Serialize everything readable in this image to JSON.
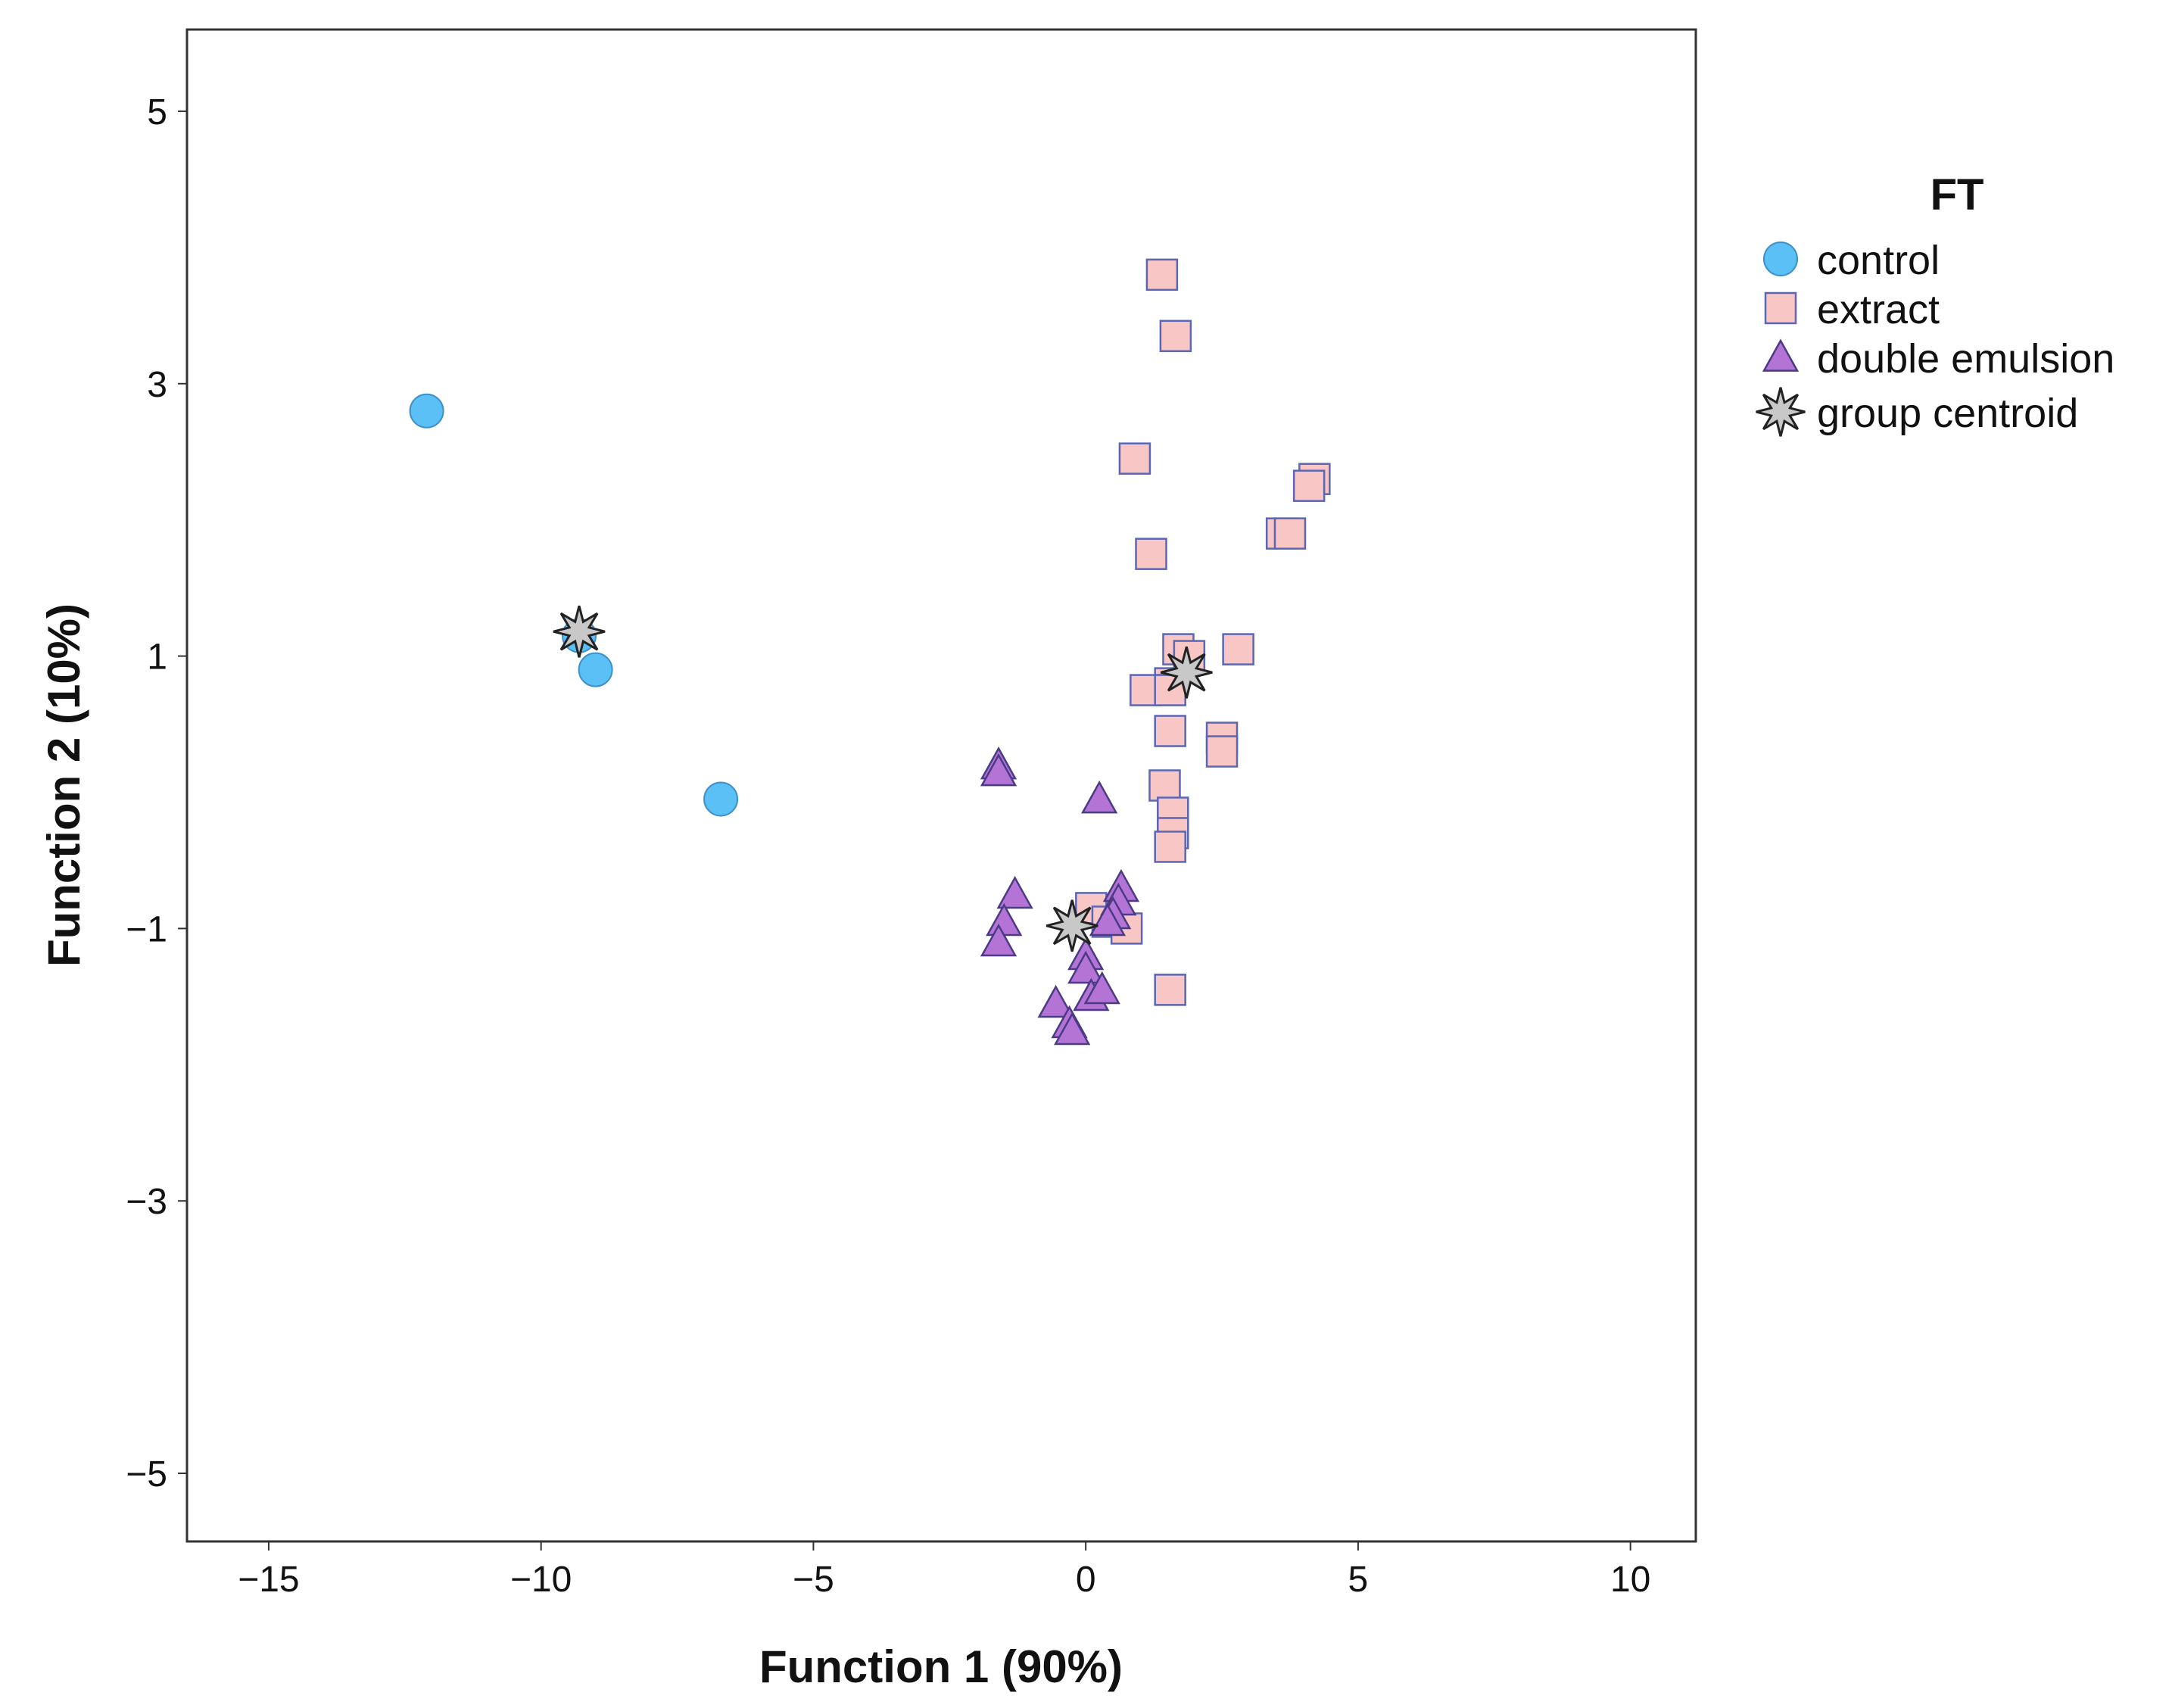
{
  "chart_data": {
    "type": "scatter",
    "xlabel": "Function 1 (90%)",
    "ylabel": "Function 2 (10%)",
    "xlim": [
      -16.5,
      11.2
    ],
    "ylim": [
      -5.5,
      5.6
    ],
    "x_ticks": [
      -15,
      -10,
      -5,
      0,
      5,
      10
    ],
    "x_tick_labels": [
      "−15",
      "−10",
      "−5",
      "0",
      "5",
      "10"
    ],
    "y_ticks": [
      5,
      3,
      1,
      -1,
      -3,
      -5
    ],
    "y_tick_labels": [
      "5",
      "3",
      "1",
      "−1",
      "−3",
      "−5"
    ],
    "grid": false,
    "legend_title": "FT",
    "legend_position": "right",
    "colors": {
      "control": "#5bc0f5",
      "extract": "#f9c6c6",
      "extract_edge": "#5b66b5",
      "double_emulsion": "#b474d6",
      "double_emulsion_edge": "#4b3a86",
      "centroid": "#c8c8c8",
      "centroid_edge": "#222222"
    },
    "series": [
      {
        "name": "control",
        "marker": "circle",
        "points": [
          [
            -12.1,
            2.8
          ],
          [
            -9.3,
            1.15
          ],
          [
            -9.0,
            0.9
          ],
          [
            -6.7,
            -0.05
          ]
        ]
      },
      {
        "name": "extract",
        "marker": "square",
        "points": [
          [
            1.4,
            3.8
          ],
          [
            1.65,
            3.35
          ],
          [
            0.9,
            2.45
          ],
          [
            4.2,
            2.3
          ],
          [
            4.1,
            2.25
          ],
          [
            3.6,
            1.9
          ],
          [
            3.75,
            1.9
          ],
          [
            1.2,
            1.75
          ],
          [
            1.7,
            1.05
          ],
          [
            2.8,
            1.05
          ],
          [
            1.9,
            1.0
          ],
          [
            1.55,
            0.8
          ],
          [
            1.1,
            0.75
          ],
          [
            1.55,
            0.75
          ],
          [
            1.55,
            0.45
          ],
          [
            2.5,
            0.4
          ],
          [
            2.5,
            0.3
          ],
          [
            1.45,
            0.05
          ],
          [
            1.6,
            -0.15
          ],
          [
            1.6,
            -0.3
          ],
          [
            1.55,
            -0.4
          ],
          [
            0.1,
            -0.85
          ],
          [
            0.4,
            -0.95
          ],
          [
            0.75,
            -1.0
          ],
          [
            1.55,
            -1.45
          ]
        ]
      },
      {
        "name": "double emulsion",
        "marker": "triangle",
        "points": [
          [
            -1.6,
            0.2
          ],
          [
            -1.6,
            0.15
          ],
          [
            0.25,
            -0.05
          ],
          [
            -1.3,
            -0.75
          ],
          [
            -1.5,
            -0.95
          ],
          [
            -1.6,
            -1.1
          ],
          [
            0.65,
            -0.7
          ],
          [
            0.6,
            -0.8
          ],
          [
            0.5,
            -0.9
          ],
          [
            0.4,
            -0.95
          ],
          [
            0.0,
            -1.2
          ],
          [
            0.0,
            -1.3
          ],
          [
            0.1,
            -1.5
          ],
          [
            0.3,
            -1.45
          ],
          [
            -0.55,
            -1.55
          ],
          [
            -0.3,
            -1.7
          ],
          [
            -0.25,
            -1.75
          ]
        ]
      },
      {
        "name": "group centroid",
        "marker": "star",
        "points": [
          [
            -9.3,
            1.18
          ],
          [
            1.85,
            0.88
          ],
          [
            -0.25,
            -0.98
          ]
        ]
      }
    ],
    "legend": [
      {
        "label": "control",
        "marker": "circle"
      },
      {
        "label": "extract",
        "marker": "square"
      },
      {
        "label": "double emulsion",
        "marker": "triangle"
      },
      {
        "label": "group centroid",
        "marker": "star"
      }
    ]
  }
}
